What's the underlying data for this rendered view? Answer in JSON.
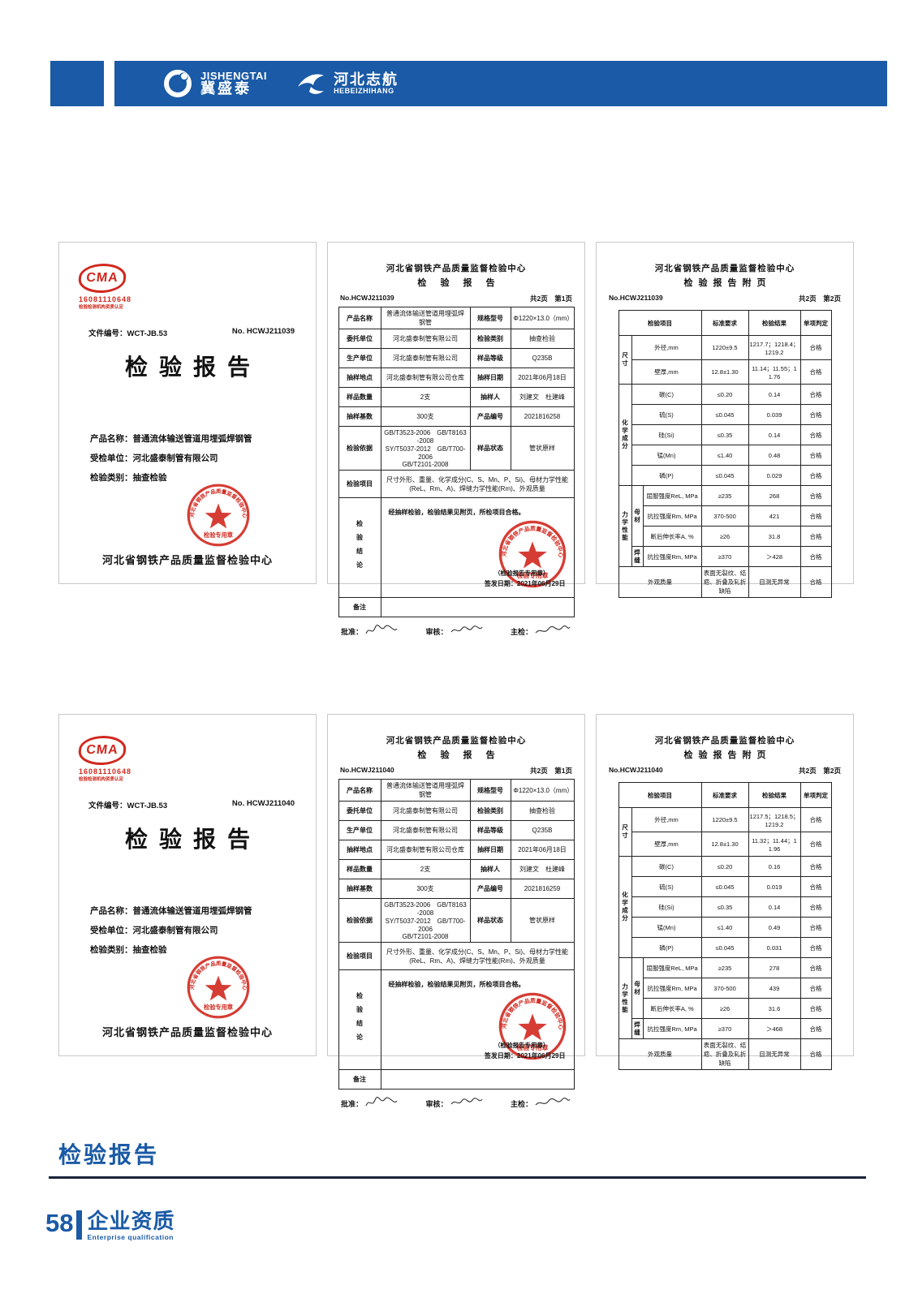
{
  "colors": {
    "brand_blue": "#1a5aa6",
    "stamp_red": "#d0281e",
    "line_dark": "#1a2238"
  },
  "header": {
    "logo1_en": "JISHENGTAI",
    "logo1_cn": "冀盛泰",
    "logo2_cn": "河北志航",
    "logo2_en": "HEBEIZHIHANG"
  },
  "cma": {
    "code": "16081110648",
    "caption": "检验检测机构资质认定"
  },
  "covers": [
    {
      "doc_no": "文件编号：WCT-JB.53",
      "report_no": "No. HCWJ211039",
      "title": "检验报告",
      "lines": [
        "产品名称：普通流体输送管道用埋弧焊钢管",
        "受检单位：河北盛泰制管有限公司",
        "检验类别：抽查检验"
      ],
      "org": "河北省钢铁产品质量监督检验中心"
    },
    {
      "doc_no": "文件编号：WCT-JB.53",
      "report_no": "No. HCWJ211040",
      "title": "检验报告",
      "lines": [
        "产品名称：普通流体输送管道用埋弧焊钢管",
        "受检单位：河北盛泰制管有限公司",
        "检验类别：抽查检验"
      ],
      "org": "河北省钢铁产品质量监督检验中心"
    }
  ],
  "stamp": {
    "ring_text": "河北省钢铁产品质量监督检验中心",
    "banner": "检验专用章"
  },
  "reports": [
    {
      "center": "河北省钢铁产品质量监督检验中心",
      "subtitle": "检 验 报 告",
      "no": "No.HCWJ211039",
      "pages": "共2页　第1页",
      "rows": [
        [
          "产品名称",
          "普通流体输送管道用埋弧焊钢管",
          "规格型号",
          "Φ1220×13.0（mm）"
        ],
        [
          "委托单位",
          "河北盛泰制管有限公司",
          "检验类别",
          "抽查检验"
        ],
        [
          "生产单位",
          "河北盛泰制管有限公司",
          "样品等级",
          "Q235B"
        ],
        [
          "抽样地点",
          "河北盛泰制管有限公司仓库",
          "抽样日期",
          "2021年06月18日"
        ],
        [
          "样品数量",
          "2支",
          "抽样人",
          "刘建文　杜建峰"
        ],
        [
          "抽样基数",
          "300支",
          "产品编号",
          "2021816258"
        ],
        [
          "检验依据",
          "GB/T3523-2006　GB/T8163-2008\nSY/T5037-2012　GB/T700-2006\nGB/T2101-2008",
          "样品状态",
          "管状原样"
        ]
      ],
      "items_label": "检验项目",
      "items": "尺寸外形、重量、化学成分(C、S、Mn、P、Si)、母材力学性能(ReL、Rm、A)、焊缝力学性能(Rm)、外观质量",
      "conclusion_label": "检验结论",
      "conclusion": "经抽样检验，检验结果见附页，所检项目合格。",
      "stamp_note": "（检验报告专用章）",
      "issue_date": "签发日期：2021年06月29日",
      "remark_label": "备注",
      "sign_approve": "批准：",
      "sign_review": "审核：",
      "sign_chief": "主检："
    },
    {
      "center": "河北省钢铁产品质量监督检验中心",
      "subtitle": "检 验 报 告",
      "no": "No.HCWJ211040",
      "pages": "共2页　第1页",
      "rows": [
        [
          "产品名称",
          "普通流体输送管道用埋弧焊钢管",
          "规格型号",
          "Φ1220×13.0（mm）"
        ],
        [
          "委托单位",
          "河北盛泰制管有限公司",
          "检验类别",
          "抽查检验"
        ],
        [
          "生产单位",
          "河北盛泰制管有限公司",
          "样品等级",
          "Q235B"
        ],
        [
          "抽样地点",
          "河北盛泰制管有限公司仓库",
          "抽样日期",
          "2021年06月18日"
        ],
        [
          "样品数量",
          "2支",
          "抽样人",
          "刘建文　杜建峰"
        ],
        [
          "抽样基数",
          "300支",
          "产品编号",
          "2021816259"
        ],
        [
          "检验依据",
          "GB/T3523-2006　GB/T8163-2008\nSY/T5037-2012　GB/T700-2006\nGB/T2101-2008",
          "样品状态",
          "管状原样"
        ]
      ],
      "items_label": "检验项目",
      "items": "尺寸外形、重量、化学成分(C、S、Mn、P、Si)、母材力学性能(ReL、Rm、A)、焊缝力学性能(Rm)、外观质量",
      "conclusion_label": "检验结论",
      "conclusion": "经抽样检验，检验结果见附页，所检项目合格。",
      "stamp_note": "（检验报告专用章）",
      "issue_date": "签发日期：2021年06月29日",
      "remark_label": "备注",
      "sign_approve": "批准：",
      "sign_review": "审核：",
      "sign_chief": "主检："
    }
  ],
  "annexes": [
    {
      "center": "河北省钢铁产品质量监督检验中心",
      "subtitle": "检验报告附页",
      "no": "No.HCWJ211039",
      "pages": "共2页　第2页",
      "head": [
        "检验项目",
        "标准要求",
        "检验结果",
        "单项判定"
      ],
      "sections": [
        {
          "label": "尺寸",
          "items": [
            [
              "外径,mm",
              "1220±9.5",
              "1217.7；1218.4；1219.2",
              "合格"
            ],
            [
              "壁厚,mm",
              "12.8±1.30",
              "11.14；11.55；11.76",
              "合格"
            ]
          ]
        },
        {
          "label": "化学成分",
          "items": [
            [
              "碳(C)",
              "≤0.20",
              "0.14",
              "合格"
            ],
            [
              "硫(S)",
              "≤0.045",
              "0.039",
              "合格"
            ],
            [
              "硅(Si)",
              "≤0.35",
              "0.14",
              "合格"
            ],
            [
              "锰(Mn)",
              "≤1.40",
              "0.48",
              "合格"
            ],
            [
              "磷(P)",
              "≤0.045",
              "0.029",
              "合格"
            ]
          ]
        },
        {
          "label": "力学性能",
          "subs": [
            {
              "label": "母材",
              "items": [
                [
                  "屈服强度ReL, MPa",
                  "≥235",
                  "268",
                  "合格"
                ],
                [
                  "抗拉强度Rm, MPa",
                  "370-500",
                  "421",
                  "合格"
                ],
                [
                  "断后伸长率A, %",
                  "≥26",
                  "31.8",
                  "合格"
                ]
              ]
            },
            {
              "label": "焊缝",
              "items": [
                [
                  "抗拉强度Rm, MPa",
                  "≥370",
                  "＞428",
                  "合格"
                ]
              ]
            }
          ]
        }
      ],
      "footer_row": [
        "外观质量",
        "表面无裂纹、结疤、折叠及轧折缺陷",
        "目测无异常",
        "合格"
      ]
    },
    {
      "center": "河北省钢铁产品质量监督检验中心",
      "subtitle": "检验报告附页",
      "no": "No.HCWJ211040",
      "pages": "共2页　第2页",
      "head": [
        "检验项目",
        "标准要求",
        "检验结果",
        "单项判定"
      ],
      "sections": [
        {
          "label": "尺寸",
          "items": [
            [
              "外径,mm",
              "1220±9.5",
              "1217.5；1218.5；1219.2",
              "合格"
            ],
            [
              "壁厚,mm",
              "12.8±1.30",
              "11.32；11.44；11.96",
              "合格"
            ]
          ]
        },
        {
          "label": "化学成分",
          "items": [
            [
              "碳(C)",
              "≤0.20",
              "0.16",
              "合格"
            ],
            [
              "硫(S)",
              "≤0.045",
              "0.019",
              "合格"
            ],
            [
              "硅(Si)",
              "≤0.35",
              "0.14",
              "合格"
            ],
            [
              "锰(Mn)",
              "≤1.40",
              "0.49",
              "合格"
            ],
            [
              "磷(P)",
              "≤0.045",
              "0.031",
              "合格"
            ]
          ]
        },
        {
          "label": "力学性能",
          "subs": [
            {
              "label": "母材",
              "items": [
                [
                  "屈服强度ReL, MPa",
                  "≥235",
                  "278",
                  "合格"
                ],
                [
                  "抗拉强度Rm, MPa",
                  "370-500",
                  "439",
                  "合格"
                ],
                [
                  "断后伸长率A, %",
                  "≥26",
                  "31.6",
                  "合格"
                ]
              ]
            },
            {
              "label": "焊缝",
              "items": [
                [
                  "抗拉强度Rm, MPa",
                  "≥370",
                  "＞468",
                  "合格"
                ]
              ]
            }
          ]
        }
      ],
      "footer_row": [
        "外观质量",
        "表面无裂纹、结疤、折叠及轧折缺陷",
        "目测无异常",
        "合格"
      ]
    }
  ],
  "footer": {
    "section_title": "检验报告",
    "page_number": "58",
    "section_label": "企业资质",
    "section_label_en": "Enterprise qualification"
  }
}
